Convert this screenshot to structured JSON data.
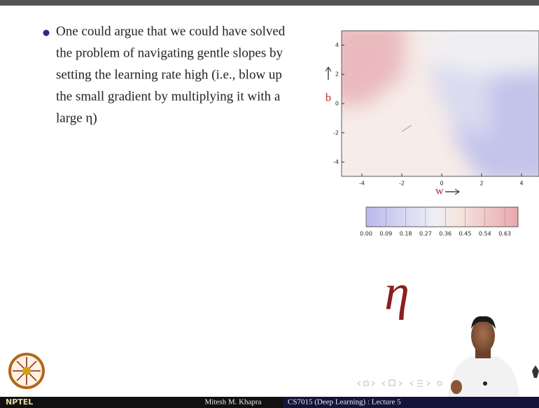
{
  "slide": {
    "bullet": {
      "lines": [
        "One could argue that we could have solved",
        "the problem of navigating gentle slopes by",
        "setting the learning rate high (i.e., blow up",
        "the small gradient by multiplying it with a",
        "large η)"
      ]
    },
    "plot": {
      "xlim": [
        -5,
        5
      ],
      "ylim": [
        -5,
        5
      ],
      "xticks": [
        -4,
        -2,
        0,
        2,
        4
      ],
      "yticks": [
        -4,
        -2,
        0,
        2,
        4
      ],
      "xlabel": "w",
      "ylabel": "b",
      "colorbar": {
        "lim": [
          0,
          0.69
        ],
        "ticks": [
          {
            "value": 0,
            "label": "0.00"
          },
          {
            "value": 0.09,
            "label": "0.09"
          },
          {
            "value": 0.18,
            "label": "0.18"
          },
          {
            "value": 0.27,
            "label": "0.27"
          },
          {
            "value": 0.36,
            "label": "0.36"
          },
          {
            "value": 0.45,
            "label": "0.45"
          },
          {
            "value": 0.54,
            "label": "0.54"
          },
          {
            "value": 0.63,
            "label": "0.63"
          }
        ]
      }
    },
    "handwriting": "η"
  },
  "footer": {
    "logo": "NPTEL",
    "author": "Mitesh M. Khapra",
    "course": "CS7015 (Deep Learning) : Lecture 5"
  }
}
